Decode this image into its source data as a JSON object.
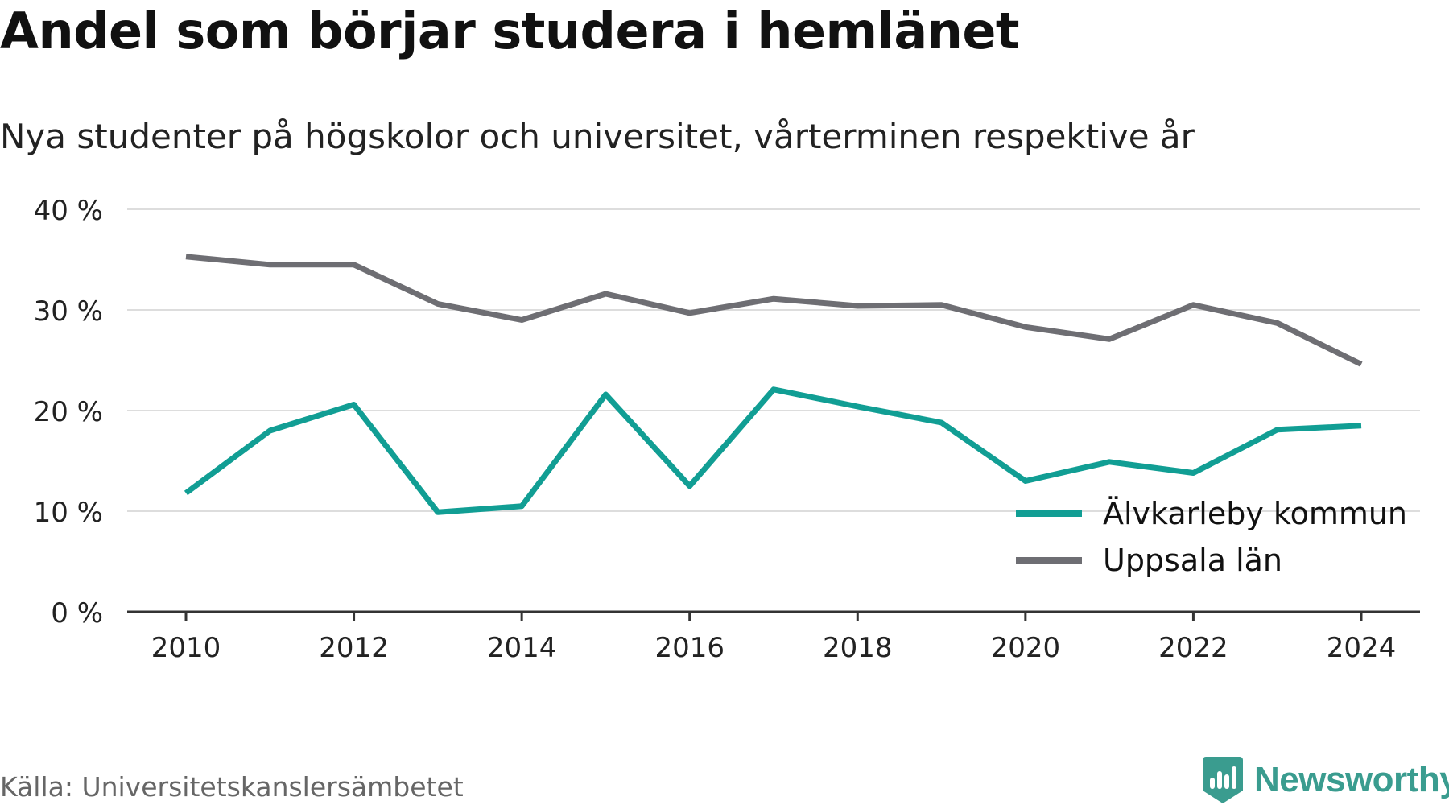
{
  "title": "Andel som börjar studera i hemlänet",
  "subtitle": "Nya studenter på högskolor och universitet, vårterminen respektive år",
  "source": "Källa: Universitetskanslersämbetet",
  "brand": {
    "name": "Newsworthy",
    "icon": "newsworthy-logo-icon",
    "color": "#3a9c8f"
  },
  "colors": {
    "grid": "#dddddd",
    "axis": "#333333",
    "text": "#222222"
  },
  "chart_data": {
    "type": "line",
    "title": "",
    "xlabel": "",
    "ylabel": "",
    "x": [
      2010,
      2011,
      2012,
      2013,
      2014,
      2015,
      2016,
      2017,
      2018,
      2019,
      2020,
      2021,
      2022,
      2023,
      2024
    ],
    "xticks": [
      2010,
      2012,
      2014,
      2016,
      2018,
      2020,
      2022,
      2024
    ],
    "xticklabels": [
      "2010",
      "2012",
      "2014",
      "2016",
      "2018",
      "2020",
      "2022",
      "2024"
    ],
    "yticks": [
      0,
      10,
      20,
      30,
      40
    ],
    "yticklabels": [
      "0 %",
      "10 %",
      "20 %",
      "30 %",
      "40 %"
    ],
    "ylim": [
      0,
      40
    ],
    "xlim": [
      2009.3,
      2024.7
    ],
    "grid": true,
    "legend_position": "bottom-right",
    "series": [
      {
        "name": "Älvkarleby kommun",
        "color": "#119e94",
        "values": [
          11.8,
          18.0,
          20.6,
          9.9,
          10.5,
          21.6,
          12.5,
          22.1,
          20.4,
          18.8,
          13.0,
          14.9,
          13.8,
          18.1,
          18.5
        ]
      },
      {
        "name": "Uppsala län",
        "color": "#6e6e73",
        "values": [
          35.3,
          34.5,
          34.5,
          30.6,
          29.0,
          31.6,
          29.7,
          31.1,
          30.4,
          30.5,
          28.3,
          27.1,
          30.5,
          28.7,
          24.6
        ]
      }
    ]
  }
}
